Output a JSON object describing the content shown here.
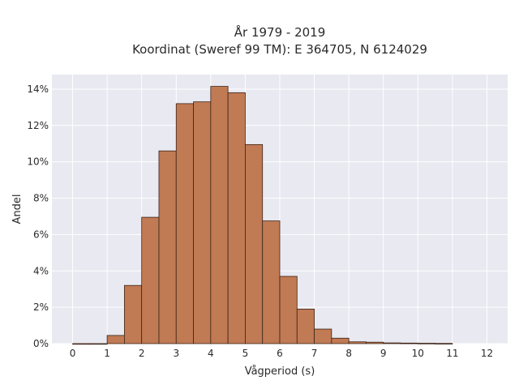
{
  "chart_data": {
    "type": "bar",
    "title_lines": [
      "År 1979 - 2019",
      "Koordinat (Sweref 99 TM): E 364705, N 6124029"
    ],
    "xlabel": "Vågperiod (s)",
    "ylabel": "Andel",
    "bin_width": 0.5,
    "bin_starts": [
      0,
      0.5,
      1,
      1.5,
      2,
      2.5,
      3,
      3.5,
      4,
      4.5,
      5,
      5.5,
      6,
      6.5,
      7,
      7.5,
      8,
      8.5,
      9,
      9.5,
      10,
      10.5
    ],
    "values": [
      0.0,
      0.0,
      0.45,
      3.2,
      6.95,
      10.6,
      13.2,
      13.3,
      14.15,
      13.8,
      10.95,
      6.75,
      3.7,
      1.9,
      0.8,
      0.3,
      0.1,
      0.08,
      0.04,
      0.03,
      0.02,
      0.01
    ],
    "xlim": [
      -0.6,
      12.6
    ],
    "ylim": [
      0,
      14.8
    ],
    "x_ticks": [
      0,
      1,
      2,
      3,
      4,
      5,
      6,
      7,
      8,
      9,
      10,
      11,
      12
    ],
    "y_ticks": [
      0,
      2,
      4,
      6,
      8,
      10,
      12,
      14
    ],
    "y_tick_suffix": "%",
    "grid": true,
    "colors": {
      "bar_fill": "#c07a54",
      "bar_edge": "#3d2416",
      "plot_bg": "#e8e9f1",
      "grid": "#ffffff"
    }
  }
}
